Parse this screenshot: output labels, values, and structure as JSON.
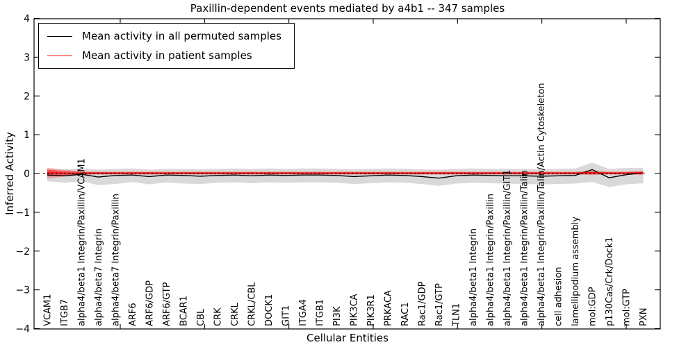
{
  "chart_data": {
    "type": "line",
    "title": "Paxillin-dependent events mediated by a4b1 -- 347 samples",
    "xlabel": "Cellular Entities",
    "ylabel": "Inferred Activity",
    "ylim": [
      -4,
      4
    ],
    "ytick_labels": [
      "4",
      "3",
      "2",
      "1",
      "0",
      "−1",
      "−2",
      "−3",
      "−4"
    ],
    "grid": false,
    "legend_position": "upper left",
    "zero_line": {
      "value": 0,
      "color": "#000000",
      "style": "dotted"
    },
    "categories": [
      "VCAM1",
      "ITGB7",
      "alpha4/beta1 Integrin/Paxillin/VCAM1",
      "alpha4/beta7 Integrin",
      "alpha4/beta7 Integrin/Paxillin",
      "ARF6",
      "ARF6/GDP",
      "ARF6/GTP",
      "BCAR1",
      "CBL",
      "CRK",
      "CRKL",
      "CRKL/CBL",
      "DOCK1",
      "GIT1",
      "ITGA4",
      "ITGB1",
      "PI3K",
      "PIK3CA",
      "PIK3R1",
      "PRKACA",
      "RAC1",
      "Rac1/GDP",
      "Rac1/GTP",
      "TLN1",
      "alpha4/beta1 Integrin",
      "alpha4/beta1 Integrin/Paxillin",
      "alpha4/beta1 Integrin/Paxillin/GIT1",
      "alpha4/beta1 Integrin/Paxillin/Talin",
      "alpha4/beta1 Integrin/Paxillin/Talin/Actin Cytoskeleton",
      "cell adhesion",
      "lamellipodium assembly",
      "mol:GDP",
      "p130Cas/Crk/Dock1",
      "mol:GTP",
      "PXN"
    ],
    "series": [
      {
        "name": "Mean activity in all permuted samples",
        "color": "#000000",
        "values": [
          -0.04,
          -0.06,
          -0.02,
          -0.09,
          -0.05,
          -0.04,
          -0.08,
          -0.04,
          -0.05,
          -0.07,
          -0.05,
          -0.04,
          -0.06,
          -0.04,
          -0.05,
          -0.04,
          -0.04,
          -0.05,
          -0.08,
          -0.06,
          -0.04,
          -0.05,
          -0.08,
          -0.12,
          -0.06,
          -0.04,
          -0.05,
          -0.06,
          -0.06,
          -0.07,
          -0.06,
          -0.05,
          0.1,
          -0.11,
          -0.03,
          0.02
        ]
      },
      {
        "name": "Mean activity in patient samples",
        "color": "#ff0000",
        "values": [
          0.02,
          0.01,
          0.01,
          0.01,
          0.01,
          0.01,
          0.01,
          0.01,
          0.01,
          0.01,
          0.01,
          0.01,
          0.01,
          0.01,
          0.01,
          0.01,
          0.01,
          0.01,
          0.01,
          0.01,
          0.01,
          0.01,
          0.01,
          0.01,
          0.01,
          0.01,
          0.01,
          0.01,
          0.01,
          0.01,
          0.01,
          0.01,
          0.02,
          0.01,
          0.01,
          0.02
        ]
      }
    ],
    "bands": [
      {
        "name": "permuted samples range",
        "color": "#d9d9d9",
        "opacity": 1,
        "upper": [
          0.12,
          0.1,
          0.13,
          0.1,
          0.12,
          0.13,
          0.1,
          0.12,
          0.12,
          0.11,
          0.12,
          0.13,
          0.12,
          0.13,
          0.12,
          0.13,
          0.13,
          0.12,
          0.11,
          0.12,
          0.13,
          0.12,
          0.11,
          0.1,
          0.12,
          0.13,
          0.12,
          0.12,
          0.12,
          0.11,
          0.12,
          0.13,
          0.28,
          0.12,
          0.14,
          0.15
        ],
        "lower": [
          -0.2,
          -0.24,
          -0.2,
          -0.3,
          -0.27,
          -0.22,
          -0.28,
          -0.23,
          -0.26,
          -0.27,
          -0.24,
          -0.23,
          -0.25,
          -0.23,
          -0.24,
          -0.23,
          -0.23,
          -0.24,
          -0.27,
          -0.25,
          -0.23,
          -0.24,
          -0.27,
          -0.32,
          -0.26,
          -0.24,
          -0.25,
          -0.26,
          -0.27,
          -0.28,
          -0.27,
          -0.26,
          -0.22,
          -0.35,
          -0.28,
          -0.25
        ]
      },
      {
        "name": "patient samples outer range",
        "color": "#ff0000",
        "opacity": 0.25,
        "upper": [
          0.15,
          0.1,
          0.06,
          0.05,
          0.05,
          0.05,
          0.05,
          0.05,
          0.05,
          0.05,
          0.05,
          0.05,
          0.05,
          0.05,
          0.05,
          0.05,
          0.05,
          0.05,
          0.05,
          0.05,
          0.05,
          0.05,
          0.05,
          0.05,
          0.05,
          0.05,
          0.05,
          0.05,
          0.05,
          0.05,
          0.05,
          0.05,
          0.07,
          0.05,
          0.05,
          0.07
        ],
        "lower": [
          -0.13,
          -0.08,
          -0.04,
          -0.03,
          -0.03,
          -0.03,
          -0.03,
          -0.03,
          -0.03,
          -0.03,
          -0.03,
          -0.03,
          -0.03,
          -0.03,
          -0.03,
          -0.03,
          -0.03,
          -0.03,
          -0.03,
          -0.03,
          -0.03,
          -0.03,
          -0.03,
          -0.03,
          -0.03,
          -0.03,
          -0.03,
          -0.03,
          -0.03,
          -0.03,
          -0.03,
          -0.03,
          -0.04,
          -0.03,
          -0.03,
          -0.04
        ]
      },
      {
        "name": "patient samples inner range",
        "color": "#ff0000",
        "opacity": 0.5,
        "upper": [
          0.1,
          0.06,
          0.04,
          0.035,
          0.035,
          0.035,
          0.035,
          0.035,
          0.035,
          0.035,
          0.035,
          0.035,
          0.035,
          0.035,
          0.035,
          0.035,
          0.035,
          0.035,
          0.035,
          0.035,
          0.035,
          0.035,
          0.035,
          0.035,
          0.035,
          0.035,
          0.035,
          0.035,
          0.035,
          0.035,
          0.035,
          0.035,
          0.05,
          0.035,
          0.035,
          0.05
        ],
        "lower": [
          -0.07,
          -0.04,
          -0.02,
          -0.015,
          -0.015,
          -0.015,
          -0.015,
          -0.015,
          -0.015,
          -0.015,
          -0.015,
          -0.015,
          -0.015,
          -0.015,
          -0.015,
          -0.015,
          -0.015,
          -0.015,
          -0.015,
          -0.015,
          -0.015,
          -0.015,
          -0.015,
          -0.015,
          -0.015,
          -0.015,
          -0.015,
          -0.015,
          -0.015,
          -0.015,
          -0.015,
          -0.015,
          -0.02,
          -0.015,
          -0.015,
          -0.02
        ]
      }
    ]
  }
}
